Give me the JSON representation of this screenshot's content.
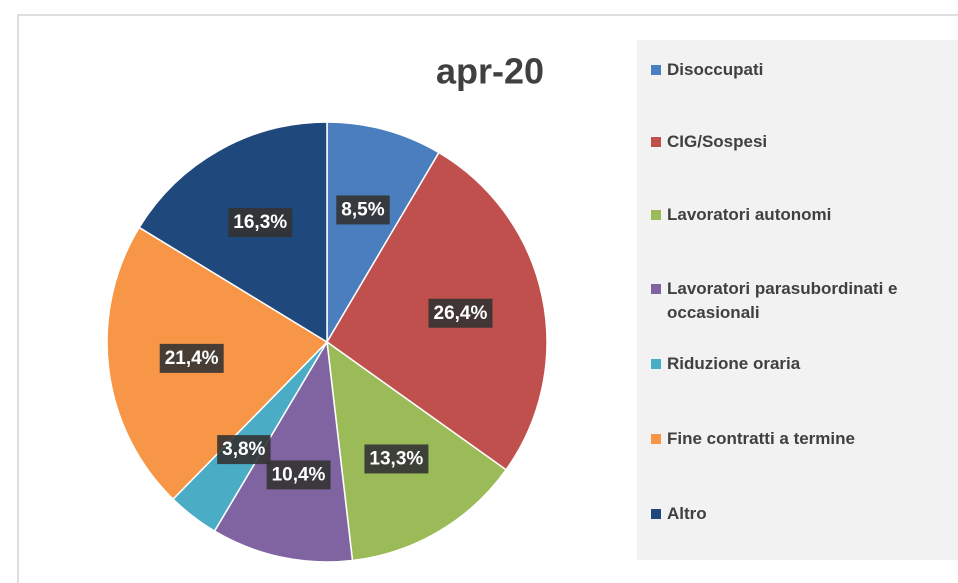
{
  "chart_data": {
    "type": "pie",
    "title": "apr-20",
    "categories": [
      "Disoccupati",
      "CIG/Sospesi",
      "Lavoratori autonomi",
      "Lavoratori parasubordinati e occasionali",
      "Riduzione oraria",
      "Fine contratti a termine",
      "Altro"
    ],
    "values": [
      8.5,
      26.4,
      13.3,
      10.4,
      3.8,
      21.4,
      16.3
    ],
    "value_labels": [
      "8,5%",
      "26,4%",
      "13,3%",
      "10,4%",
      "3,8%",
      "21,4%",
      "16,3%"
    ],
    "colors": [
      "#4a7ebf",
      "#c0504d",
      "#9bbb59",
      "#8064a2",
      "#4bacc6",
      "#f79646",
      "#1f497d"
    ],
    "legend": "right"
  }
}
